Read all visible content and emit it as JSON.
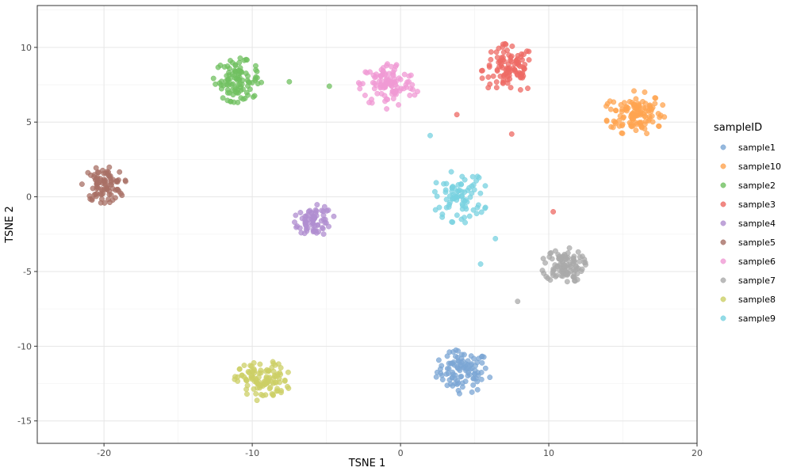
{
  "chart_data": {
    "type": "scatter",
    "title": "",
    "xlabel": "TSNE 1",
    "ylabel": "TSNE 2",
    "xlim": [
      -24.5,
      20
    ],
    "ylim": [
      -16.5,
      12.8
    ],
    "x_ticks": [
      -20,
      -10,
      0,
      10,
      20
    ],
    "y_ticks": [
      -15,
      -10,
      -5,
      0,
      5,
      10
    ],
    "x_tick_labels": [
      "-20",
      "-10",
      "0",
      "10",
      "20"
    ],
    "y_tick_labels": [
      "-15",
      "-10",
      "-5",
      "0",
      "5",
      "10"
    ],
    "grid": true,
    "legend": {
      "title": "sampleID",
      "placement": "right"
    },
    "series": [
      {
        "name": "sample1",
        "color": "#7ba6d4",
        "cluster": {
          "center": [
            4.2,
            -11.7
          ],
          "spread": [
            1.4,
            1.1
          ],
          "count": 100
        },
        "outliers": []
      },
      {
        "name": "sample10",
        "color": "#ffa450",
        "cluster": {
          "center": [
            15.8,
            5.6
          ],
          "spread": [
            1.5,
            1.1
          ],
          "count": 120
        },
        "outliers": []
      },
      {
        "name": "sample2",
        "color": "#70c060",
        "cluster": {
          "center": [
            -11.0,
            7.8
          ],
          "spread": [
            1.2,
            1.1
          ],
          "count": 100
        },
        "outliers": [
          [
            -7.5,
            7.7
          ],
          [
            -4.8,
            7.4
          ]
        ]
      },
      {
        "name": "sample3",
        "color": "#ee6a64",
        "cluster": {
          "center": [
            7.3,
            8.5
          ],
          "spread": [
            1.4,
            1.3
          ],
          "count": 100
        },
        "outliers": [
          [
            3.8,
            5.5
          ],
          [
            7.5,
            4.2
          ],
          [
            10.3,
            -1.0
          ]
        ]
      },
      {
        "name": "sample4",
        "color": "#b08ed0",
        "cluster": {
          "center": [
            -5.8,
            -1.6
          ],
          "spread": [
            1.0,
            0.8
          ],
          "count": 70
        },
        "outliers": []
      },
      {
        "name": "sample5",
        "color": "#a87066",
        "cluster": {
          "center": [
            -20.0,
            0.8
          ],
          "spread": [
            1.1,
            0.9
          ],
          "count": 90
        },
        "outliers": []
      },
      {
        "name": "sample6",
        "color": "#f09ad4",
        "cluster": {
          "center": [
            -0.8,
            7.5
          ],
          "spread": [
            1.5,
            1.2
          ],
          "count": 110
        },
        "outliers": []
      },
      {
        "name": "sample7",
        "color": "#aaaaaa",
        "cluster": {
          "center": [
            11.0,
            -4.6
          ],
          "spread": [
            1.1,
            0.9
          ],
          "count": 100
        },
        "outliers": [
          [
            7.9,
            -7.0
          ]
        ]
      },
      {
        "name": "sample8",
        "color": "#cccf66",
        "cluster": {
          "center": [
            -9.3,
            -12.3
          ],
          "spread": [
            1.4,
            1.0
          ],
          "count": 110
        },
        "outliers": []
      },
      {
        "name": "sample9",
        "color": "#78d2e0",
        "cluster": {
          "center": [
            4.0,
            0.0
          ],
          "spread": [
            1.4,
            1.3
          ],
          "count": 80
        },
        "outliers": [
          [
            2.0,
            4.1
          ],
          [
            6.4,
            -2.8
          ],
          [
            5.4,
            -4.5
          ]
        ]
      }
    ]
  }
}
